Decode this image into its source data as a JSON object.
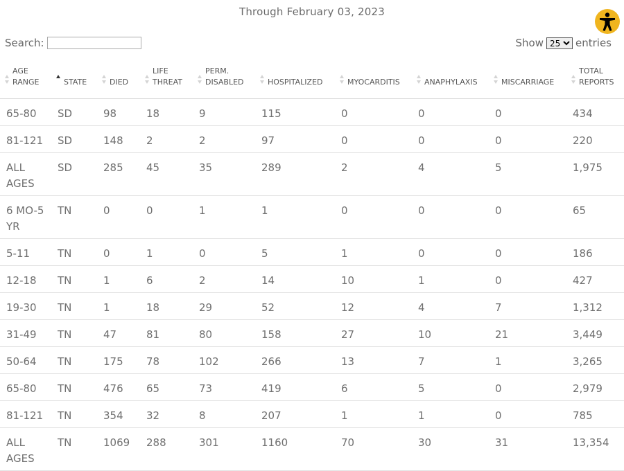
{
  "title": "Through February 03, 2023",
  "search": {
    "label": "Search:",
    "value": ""
  },
  "length": {
    "show_label": "Show",
    "selected": "25",
    "entries_label": "entries"
  },
  "columns": [
    {
      "line1": "AGE",
      "line2": "RANGE"
    },
    {
      "line1": "",
      "line2": "STATE"
    },
    {
      "line1": "",
      "line2": "DIED"
    },
    {
      "line1": "LIFE",
      "line2": "THREAT"
    },
    {
      "line1": "PERM.",
      "line2": "DISABLED"
    },
    {
      "line1": "",
      "line2": "HOSPITALIZED"
    },
    {
      "line1": "",
      "line2": "MYOCARDITIS"
    },
    {
      "line1": "",
      "line2": "ANAPHYLAXIS"
    },
    {
      "line1": "",
      "line2": "MISCARRIAGE"
    },
    {
      "line1": "TOTAL",
      "line2": "REPORTS"
    }
  ],
  "rows": [
    [
      "65-80",
      "SD",
      "98",
      "18",
      "9",
      "115",
      "0",
      "0",
      "0",
      "434"
    ],
    [
      "81-121",
      "SD",
      "148",
      "2",
      "2",
      "97",
      "0",
      "0",
      "0",
      "220"
    ],
    [
      "ALL AGES",
      "SD",
      "285",
      "45",
      "35",
      "289",
      "2",
      "4",
      "5",
      "1,975"
    ],
    [
      "6 MO-5 YR",
      "TN",
      "0",
      "0",
      "1",
      "1",
      "0",
      "0",
      "0",
      "65"
    ],
    [
      "5-11",
      "TN",
      "0",
      "1",
      "0",
      "5",
      "1",
      "0",
      "0",
      "186"
    ],
    [
      "12-18",
      "TN",
      "1",
      "6",
      "2",
      "14",
      "10",
      "1",
      "0",
      "427"
    ],
    [
      "19-30",
      "TN",
      "1",
      "18",
      "29",
      "52",
      "12",
      "4",
      "7",
      "1,312"
    ],
    [
      "31-49",
      "TN",
      "47",
      "81",
      "80",
      "158",
      "27",
      "10",
      "21",
      "3,449"
    ],
    [
      "50-64",
      "TN",
      "175",
      "78",
      "102",
      "266",
      "13",
      "7",
      "1",
      "3,265"
    ],
    [
      "65-80",
      "TN",
      "476",
      "65",
      "73",
      "419",
      "6",
      "5",
      "0",
      "2,979"
    ],
    [
      "81-121",
      "TN",
      "354",
      "32",
      "8",
      "207",
      "1",
      "1",
      "0",
      "785"
    ],
    [
      "ALL AGES",
      "TN",
      "1069",
      "288",
      "301",
      "1160",
      "70",
      "30",
      "31",
      "13,354"
    ]
  ],
  "accessibility_icon": "accessibility-person-icon",
  "accent_color": "#f0b51f"
}
